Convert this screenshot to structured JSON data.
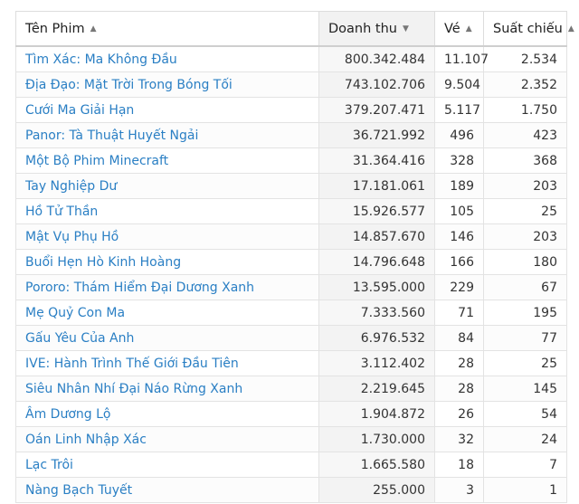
{
  "table": {
    "headers": [
      {
        "label": "Tên Phim",
        "sort": "▲"
      },
      {
        "label": "Doanh thu",
        "sort": "▼"
      },
      {
        "label": "Vé",
        "sort": "▲"
      },
      {
        "label": "Suất chiếu",
        "sort": "▲"
      }
    ],
    "rows": [
      {
        "name": "Tìm Xác: Ma Không Đầu",
        "revenue": "800.342.484",
        "tickets": "11.107",
        "shows": "2.534"
      },
      {
        "name": "Địa Đạo: Mặt Trời Trong Bóng Tối",
        "revenue": "743.102.706",
        "tickets": "9.504",
        "shows": "2.352"
      },
      {
        "name": "Cưới Ma Giải Hạn",
        "revenue": "379.207.471",
        "tickets": "5.117",
        "shows": "1.750"
      },
      {
        "name": "Panor: Tà Thuật Huyết Ngải",
        "revenue": "36.721.992",
        "tickets": "496",
        "shows": "423"
      },
      {
        "name": "Một Bộ Phim Minecraft",
        "revenue": "31.364.416",
        "tickets": "328",
        "shows": "368"
      },
      {
        "name": "Tay Nghiệp Dư",
        "revenue": "17.181.061",
        "tickets": "189",
        "shows": "203"
      },
      {
        "name": "Hồ Tử Thần",
        "revenue": "15.926.577",
        "tickets": "105",
        "shows": "25"
      },
      {
        "name": "Mật Vụ Phụ Hồ",
        "revenue": "14.857.670",
        "tickets": "146",
        "shows": "203"
      },
      {
        "name": "Buổi Hẹn Hò Kinh Hoàng",
        "revenue": "14.796.648",
        "tickets": "166",
        "shows": "180"
      },
      {
        "name": "Pororo: Thám Hiểm Đại Dương Xanh",
        "revenue": "13.595.000",
        "tickets": "229",
        "shows": "67"
      },
      {
        "name": "Mẹ Quỷ Con Ma",
        "revenue": "7.333.560",
        "tickets": "71",
        "shows": "195"
      },
      {
        "name": "Gấu Yêu Của Anh",
        "revenue": "6.976.532",
        "tickets": "84",
        "shows": "77"
      },
      {
        "name": "IVE: Hành Trình Thế Giới Đầu Tiên",
        "revenue": "3.112.402",
        "tickets": "28",
        "shows": "25"
      },
      {
        "name": "Siêu Nhân Nhí Đại Náo Rừng Xanh",
        "revenue": "2.219.645",
        "tickets": "28",
        "shows": "145"
      },
      {
        "name": "Âm Dương Lộ",
        "revenue": "1.904.872",
        "tickets": "26",
        "shows": "54"
      },
      {
        "name": "Oán Linh Nhập Xác",
        "revenue": "1.730.000",
        "tickets": "32",
        "shows": "24"
      },
      {
        "name": "Lạc Trôi",
        "revenue": "1.665.580",
        "tickets": "18",
        "shows": "7"
      },
      {
        "name": "Nàng Bạch Tuyết",
        "revenue": "255.000",
        "tickets": "3",
        "shows": "1"
      }
    ]
  }
}
